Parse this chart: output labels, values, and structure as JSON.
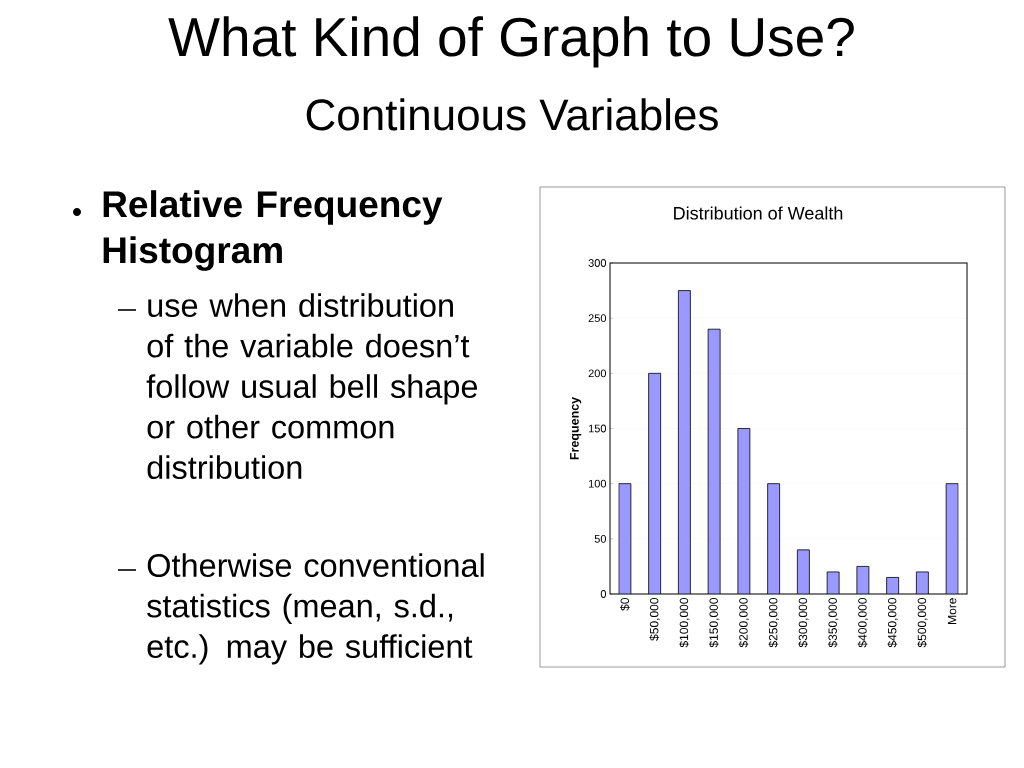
{
  "chart_data": {
    "type": "bar",
    "title": "Distribution of Wealth",
    "ylabel": "Frequency",
    "categories": [
      "$0",
      "$50,000",
      "$100,000",
      "$150,000",
      "$200,000",
      "$250,000",
      "$300,000",
      "$350,000",
      "$400,000",
      "$450,000",
      "$500,000",
      "More"
    ],
    "values": [
      100,
      200,
      275,
      240,
      150,
      100,
      40,
      20,
      25,
      15,
      20,
      100
    ],
    "color": "#9999ff",
    "ylim": [
      0,
      300
    ],
    "yticks": [
      0,
      50,
      100,
      150,
      200,
      250,
      300
    ],
    "grid": "y",
    "annotations": [
      "What Kind of Graph to Use?",
      "Continuous Variables",
      "Relative Frequency Histogram",
      "use when distribution of the variable doesn’t follow usual bell shape or other common distribution",
      "Otherwise conventional statistics (mean, s.d., etc.) may be sufficient"
    ]
  }
}
